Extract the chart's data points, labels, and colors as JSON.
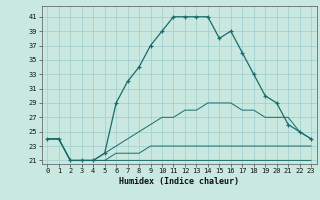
{
  "title": "",
  "xlabel": "Humidex (Indice chaleur)",
  "background_color": "#c8e8e0",
  "grid_color": "#9ecece",
  "line_color": "#1a6b6b",
  "xlim": [
    -0.5,
    23.5
  ],
  "ylim": [
    20.5,
    42.5
  ],
  "yticks": [
    21,
    23,
    25,
    27,
    29,
    31,
    33,
    35,
    37,
    39,
    41
  ],
  "xticks": [
    0,
    1,
    2,
    3,
    4,
    5,
    6,
    7,
    8,
    9,
    10,
    11,
    12,
    13,
    14,
    15,
    16,
    17,
    18,
    19,
    20,
    21,
    22,
    23
  ],
  "series_main": [
    24,
    24,
    21,
    21,
    21,
    22,
    29,
    32,
    34,
    37,
    39,
    41,
    41,
    41,
    41,
    38,
    39,
    36,
    33,
    30,
    29,
    26,
    25,
    24
  ],
  "series_line1": [
    24,
    24,
    21,
    21,
    21,
    21,
    21,
    21,
    21,
    21,
    21,
    21,
    21,
    21,
    21,
    21,
    21,
    21,
    21,
    21,
    21,
    21,
    21,
    21
  ],
  "series_line2": [
    24,
    24,
    21,
    21,
    21,
    21,
    22,
    22,
    22,
    23,
    23,
    23,
    23,
    23,
    23,
    23,
    23,
    23,
    23,
    23,
    23,
    23,
    23,
    23
  ],
  "series_line3": [
    24,
    24,
    21,
    21,
    21,
    22,
    23,
    24,
    25,
    26,
    27,
    27,
    28,
    28,
    29,
    29,
    29,
    28,
    28,
    27,
    27,
    27,
    25,
    24
  ]
}
